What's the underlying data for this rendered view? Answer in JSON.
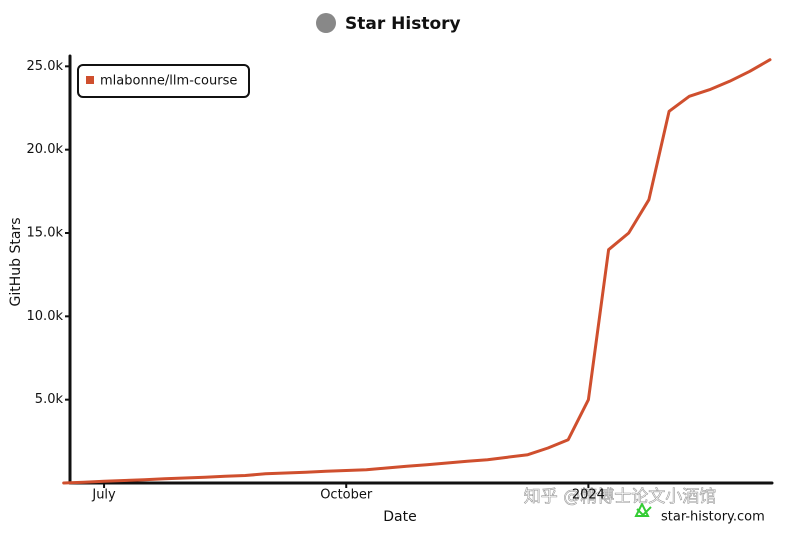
{
  "chart_data": {
    "type": "line",
    "title": "Star History",
    "x_label": "Date",
    "y_label": "GitHub Stars",
    "watermark": "star-history.com",
    "source_watermark": "知乎 @精博士论文小酒馆",
    "legend": "top-left",
    "categories": [
      null,
      null,
      "July",
      null,
      null,
      null,
      null,
      null,
      null,
      null,
      null,
      null,
      null,
      null,
      "October",
      null,
      null,
      null,
      null,
      null,
      null,
      null,
      null,
      null,
      null,
      null,
      "2024",
      null,
      null,
      null,
      null,
      null,
      null,
      null,
      null,
      null
    ],
    "series": [
      {
        "name": "mlabonne/llm-course",
        "color": "#cf4f2e",
        "values": [
          0,
          50,
          100,
          150,
          200,
          250,
          300,
          350,
          400,
          450,
          550,
          600,
          650,
          700,
          750,
          800,
          900,
          1000,
          1100,
          1200,
          1300,
          1400,
          1550,
          1700,
          2100,
          2600,
          5000,
          14000,
          15000,
          17000,
          22300,
          23200,
          23600,
          24100,
          24700,
          25400
        ]
      }
    ],
    "ylim": [
      0,
      25500
    ],
    "yticks": [
      {
        "value": 5000,
        "label": "5.0k"
      },
      {
        "value": 10000,
        "label": "10.0k"
      },
      {
        "value": 15000,
        "label": "15.0k"
      },
      {
        "value": 20000,
        "label": "20.0k"
      },
      {
        "value": 25000,
        "label": "25.0k"
      }
    ]
  }
}
